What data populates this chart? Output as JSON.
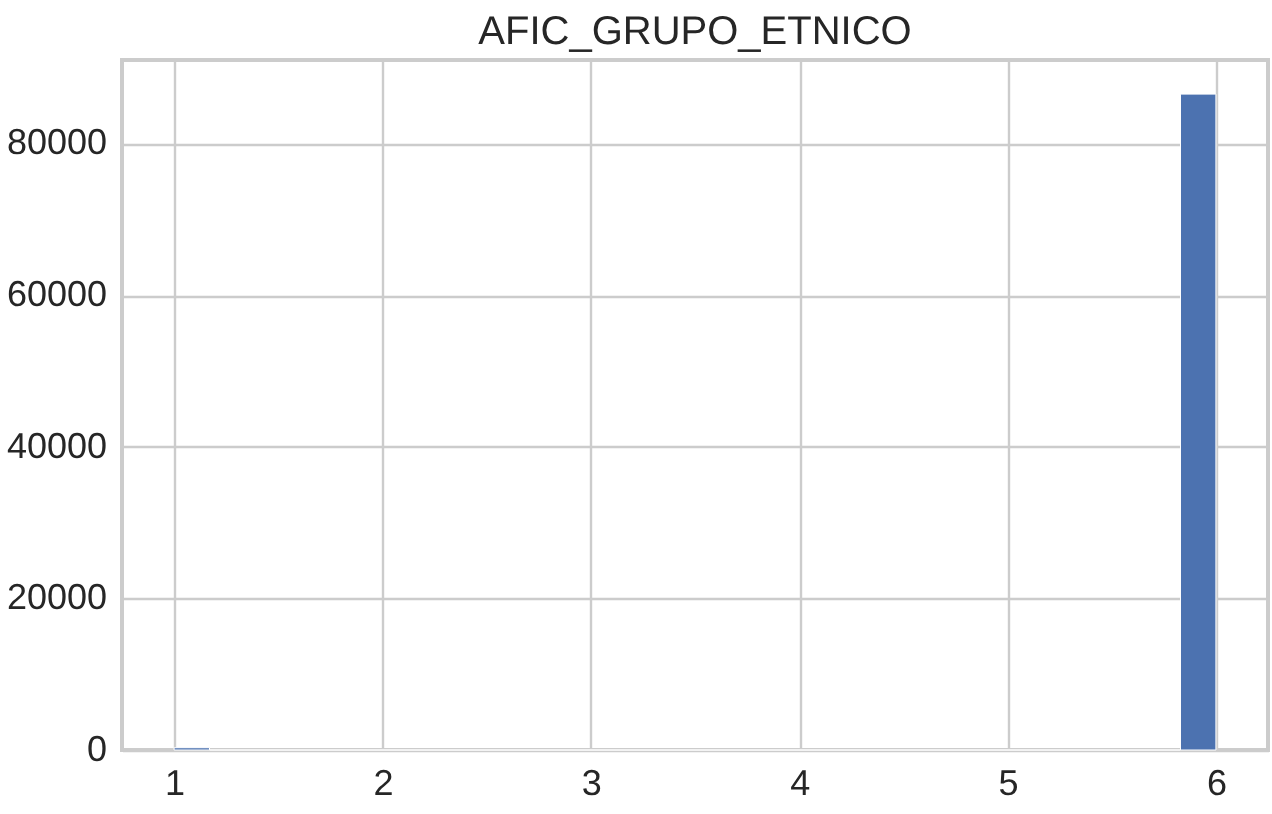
{
  "chart_data": {
    "type": "histogram",
    "title": "AFIC_GRUPO_ETNICO",
    "bins": [
      1,
      1.17,
      5.83,
      6
    ],
    "values": [
      300,
      0,
      86500
    ],
    "color": "#4c72b0",
    "xlim": [
      0.75,
      6.25
    ],
    "xticks": [
      1,
      2,
      3,
      4,
      5,
      6
    ],
    "ylim": [
      0,
      91000
    ],
    "yticks": [
      0,
      20000,
      40000,
      60000,
      80000
    ],
    "grid": true
  }
}
